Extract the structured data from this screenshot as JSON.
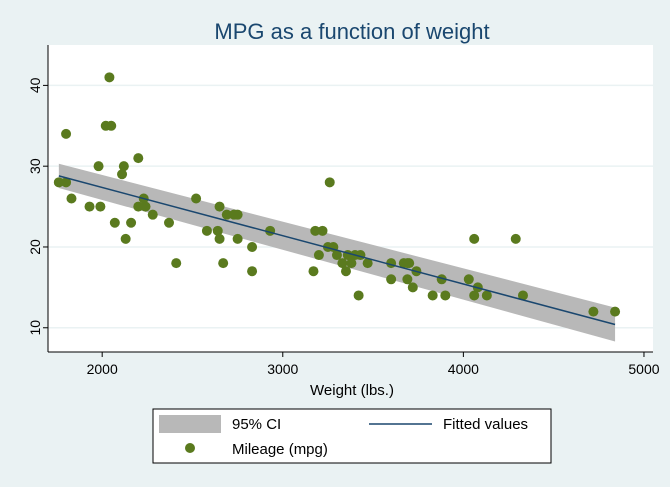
{
  "chart_data": {
    "type": "scatter",
    "title": "MPG as a function of weight",
    "xlabel": "Weight (lbs.)",
    "ylabel": "",
    "xlim": [
      1700,
      5050
    ],
    "ylim": [
      7,
      45
    ],
    "xticks": [
      2000,
      3000,
      4000,
      5000
    ],
    "yticks": [
      10,
      20,
      30,
      40
    ],
    "grid": true,
    "colors": {
      "points": "#5a7a1e",
      "fit_line": "#1a476f",
      "ci_band": "#b8b8b8",
      "title": "#1a476f",
      "background": "#eaf2f3",
      "plot_area": "#ffffff"
    },
    "legend": {
      "placement": "bottom",
      "entries": [
        "95% CI",
        "Fitted values",
        "Mileage (mpg)"
      ]
    },
    "fit": {
      "x": [
        1760,
        4840
      ],
      "y": [
        28.8,
        10.4
      ],
      "ci_lower": [
        27.3,
        8.3
      ],
      "ci_upper": [
        30.3,
        12.5
      ]
    },
    "series": [
      {
        "name": "Mileage (mpg)",
        "points": [
          [
            1760,
            28
          ],
          [
            1800,
            28
          ],
          [
            1800,
            34
          ],
          [
            1830,
            26
          ],
          [
            1930,
            25
          ],
          [
            1980,
            30
          ],
          [
            1990,
            25
          ],
          [
            2020,
            35
          ],
          [
            2040,
            41
          ],
          [
            2050,
            35
          ],
          [
            2070,
            23
          ],
          [
            2110,
            29
          ],
          [
            2120,
            30
          ],
          [
            2130,
            21
          ],
          [
            2160,
            23
          ],
          [
            2200,
            25
          ],
          [
            2200,
            31
          ],
          [
            2230,
            26
          ],
          [
            2240,
            25
          ],
          [
            2280,
            24
          ],
          [
            2370,
            23
          ],
          [
            2410,
            18
          ],
          [
            2520,
            26
          ],
          [
            2580,
            22
          ],
          [
            2640,
            22
          ],
          [
            2650,
            21
          ],
          [
            2650,
            25
          ],
          [
            2670,
            18
          ],
          [
            2690,
            24
          ],
          [
            2730,
            24
          ],
          [
            2750,
            24
          ],
          [
            2750,
            21
          ],
          [
            2830,
            17
          ],
          [
            2830,
            20
          ],
          [
            2930,
            22
          ],
          [
            3170,
            17
          ],
          [
            3180,
            22
          ],
          [
            3200,
            19
          ],
          [
            3220,
            22
          ],
          [
            3250,
            20
          ],
          [
            3260,
            28
          ],
          [
            3280,
            20
          ],
          [
            3300,
            19
          ],
          [
            3330,
            18
          ],
          [
            3350,
            17
          ],
          [
            3360,
            19
          ],
          [
            3380,
            18
          ],
          [
            3400,
            19
          ],
          [
            3420,
            14
          ],
          [
            3430,
            19
          ],
          [
            3470,
            18
          ],
          [
            3600,
            16
          ],
          [
            3600,
            18
          ],
          [
            3670,
            18
          ],
          [
            3690,
            18
          ],
          [
            3690,
            16
          ],
          [
            3700,
            18
          ],
          [
            3720,
            15
          ],
          [
            3740,
            17
          ],
          [
            3830,
            14
          ],
          [
            3880,
            16
          ],
          [
            3900,
            14
          ],
          [
            4030,
            16
          ],
          [
            4060,
            14
          ],
          [
            4060,
            21
          ],
          [
            4080,
            15
          ],
          [
            4130,
            14
          ],
          [
            4290,
            21
          ],
          [
            4330,
            14
          ],
          [
            4720,
            12
          ],
          [
            4840,
            12
          ]
        ]
      }
    ]
  }
}
